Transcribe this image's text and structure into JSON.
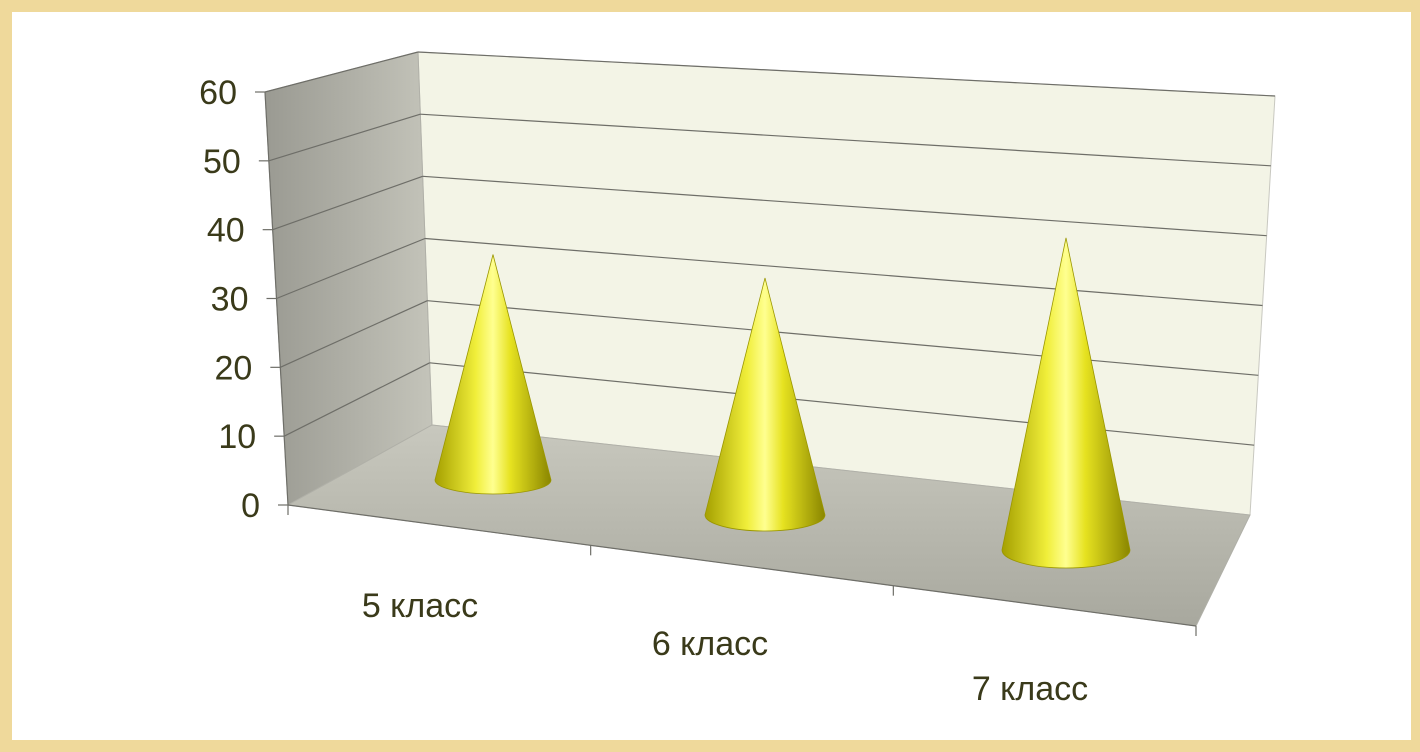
{
  "chart_data": {
    "type": "bar",
    "subtype": "3d-cone",
    "categories": [
      "5 класс",
      "6 класс",
      "7 класс"
    ],
    "values": [
      39,
      41,
      54
    ],
    "ylim": [
      0,
      60
    ],
    "yticks": [
      "0",
      "10",
      "20",
      "30",
      "40",
      "50",
      "60"
    ],
    "grid": true,
    "legend": "none",
    "colors": {
      "cone_light": "#f4f25a",
      "cone_mid": "#d8d400",
      "cone_dark": "#8a8600",
      "back_wall": "#f3f4e6",
      "side_wall": "#a8a8a0",
      "floor": "#b8b8ae",
      "frame": "#efd99b"
    }
  }
}
